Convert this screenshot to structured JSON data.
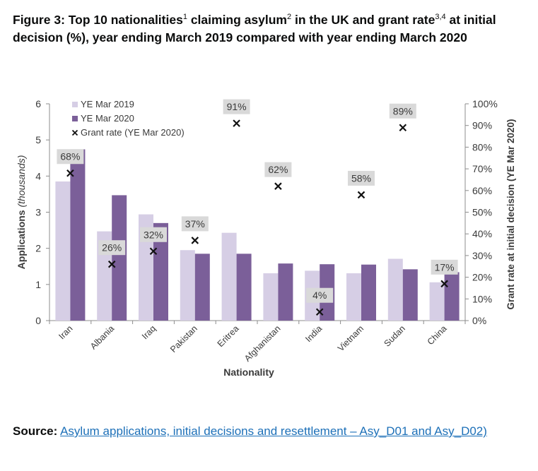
{
  "header": {
    "title_part1": "Figure 3: Top 10 nationalities",
    "title_sup1": "1",
    "title_part2": " claiming asylum",
    "title_sup2": "2",
    "title_part3": " in the UK and grant rate",
    "title_sup3": "3,4",
    "title_part4": " at initial decision (%), year ending March 2019 compared with year ending March 2020"
  },
  "source": {
    "label": "Source:",
    "link_text": "Asylum applications, initial decisions and resettlement – Asy_D01 and Asy_D02)"
  },
  "chart_data": {
    "type": "bar",
    "categories": [
      "Iran",
      "Albania",
      "Iraq",
      "Pakistan",
      "Eritrea",
      "Afghanistan",
      "India",
      "Vietnam",
      "Sudan",
      "China"
    ],
    "series": [
      {
        "name": "YE Mar 2019",
        "axis": "left",
        "color": "#d6cee5",
        "values": [
          3.85,
          2.47,
          2.94,
          1.95,
          2.43,
          1.31,
          1.38,
          1.31,
          1.71,
          1.06
        ]
      },
      {
        "name": "YE Mar 2020",
        "axis": "left",
        "color": "#7b5f99",
        "values": [
          4.74,
          3.47,
          2.7,
          1.85,
          1.85,
          1.58,
          1.56,
          1.55,
          1.42,
          1.34
        ]
      },
      {
        "name": "Grant rate (YE Mar 2020)",
        "axis": "right",
        "marker": "x",
        "color": "#111111",
        "values": [
          68,
          26,
          32,
          37,
          91,
          62,
          4,
          58,
          89,
          17
        ],
        "labels": [
          "68%",
          "26%",
          "32%",
          "37%",
          "91%",
          "62%",
          "4%",
          "58%",
          "89%",
          "17%"
        ]
      }
    ],
    "xlabel": "Nationality",
    "ylabel": "Applications",
    "ylabel_suffix": "(thousands)",
    "y2label": "Grant rate at initial decision (YE Mar 2020)",
    "ylim": [
      0,
      6
    ],
    "y2lim": [
      0,
      100
    ],
    "yticks": [
      "0",
      "1",
      "2",
      "3",
      "4",
      "5",
      "6"
    ],
    "y2ticks": [
      "0%",
      "10%",
      "20%",
      "30%",
      "40%",
      "50%",
      "60%",
      "70%",
      "80%",
      "90%",
      "100%"
    ],
    "legend_position": "top-left",
    "grid": false,
    "colors": {
      "label_box": "#d9d9d9",
      "axis": "#8c8c8c",
      "text": "#3a3a3a"
    }
  }
}
